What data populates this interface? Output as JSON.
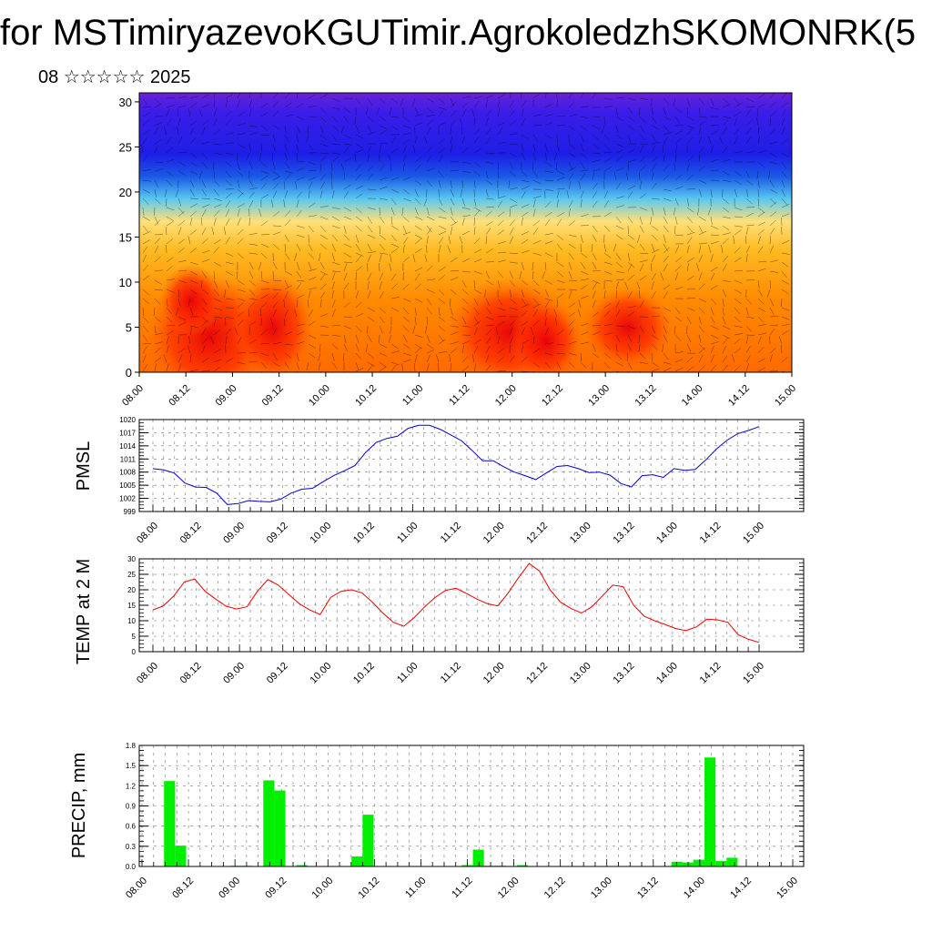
{
  "header": {
    "title": "for MSTimiryazevoKGUTimir.AgrokoledzhSKOMONRK(5",
    "date": "08 ☆☆☆☆☆ 2025"
  },
  "chart_data": [
    {
      "type": "heatmap",
      "title": "",
      "xlabel": "",
      "ylabel": "",
      "xticks": [
        "08.00",
        "08.12",
        "09.00",
        "09.12",
        "10.00",
        "10.12",
        "11.00",
        "11.12",
        "12.00",
        "12.12",
        "13.00",
        "13.12",
        "14.00",
        "14.12",
        "15.00"
      ],
      "yticks": [
        0,
        5,
        10,
        15,
        20,
        25,
        30
      ],
      "ylim": [
        0,
        31
      ],
      "colors": [
        "#e8000b",
        "#ff8a00",
        "#ffd84a",
        "#5ac8f0",
        "#1e1ee6",
        "#6a20d8"
      ]
    },
    {
      "type": "line",
      "ylabel": "PMSL",
      "ylim": [
        999,
        1020
      ],
      "yticks": [
        999,
        1002,
        1005,
        1008,
        1011,
        1014,
        1017,
        1020
      ],
      "xticks": [
        "08.00",
        "08.12",
        "09.00",
        "09.12",
        "10.00",
        "10.12",
        "11.00",
        "11.12",
        "12.00",
        "12.12",
        "13.00",
        "13.12",
        "14.00",
        "14.12",
        "15.00"
      ],
      "grid": true,
      "color": "#0000cc",
      "values": [
        1008.8,
        1008.5,
        1007.8,
        1005.5,
        1004.6,
        1004.5,
        1003.2,
        1000.6,
        1000.8,
        1001.5,
        1001.3,
        1001.2,
        1001.8,
        1003.2,
        1004.1,
        1004.3,
        1005.8,
        1007.2,
        1008.3,
        1009.5,
        1012.5,
        1014.8,
        1015.7,
        1016.2,
        1018.0,
        1018.7,
        1018.7,
        1017.8,
        1016.5,
        1015.2,
        1013.0,
        1010.6,
        1010.6,
        1009.2,
        1008.0,
        1007.2,
        1006.3,
        1007.8,
        1009.3,
        1009.5,
        1008.8,
        1007.9,
        1008.0,
        1007.3,
        1005.4,
        1004.6,
        1007.2,
        1007.4,
        1006.8,
        1008.8,
        1008.4,
        1008.6,
        1010.8,
        1013.3,
        1015.3,
        1016.8,
        1017.5,
        1018.4
      ]
    },
    {
      "type": "line",
      "ylabel": "TEMP at 2 M",
      "ylim": [
        0,
        30
      ],
      "yticks": [
        0,
        5,
        10,
        15,
        20,
        25,
        30
      ],
      "xticks": [
        "08.00",
        "08.12",
        "09.00",
        "09.12",
        "10.00",
        "10.12",
        "11.00",
        "11.12",
        "12.00",
        "12.12",
        "13.00",
        "13.12",
        "14.00",
        "14.12",
        "15.00"
      ],
      "grid": true,
      "color": "#ee0000",
      "values": [
        13.5,
        14.8,
        18.0,
        22.5,
        23.5,
        19.5,
        17.0,
        14.7,
        13.8,
        14.5,
        19.5,
        23.3,
        21.5,
        18.5,
        15.5,
        13.5,
        12.0,
        17.5,
        19.5,
        20.0,
        19.0,
        16.0,
        12.5,
        9.5,
        8.2,
        11.0,
        14.5,
        17.5,
        19.8,
        20.5,
        18.8,
        17.0,
        15.5,
        14.8,
        19.0,
        24.0,
        28.5,
        26.0,
        20.0,
        16.0,
        14.0,
        12.5,
        14.5,
        18.0,
        21.5,
        21.0,
        15.0,
        11.5,
        10.0,
        8.8,
        7.5,
        6.8,
        8.0,
        10.5,
        10.3,
        9.5,
        5.5,
        4.0,
        3.0
      ]
    },
    {
      "type": "bar",
      "ylabel": "PRECIP, mm",
      "ylim": [
        0,
        1.8
      ],
      "yticks": [
        "0.0",
        "0.3",
        "0.6",
        "0.9",
        "1.2",
        "1.5",
        "1.8"
      ],
      "xticks": [
        "08.00",
        "08.12",
        "09.00",
        "09.12",
        "10.00",
        "10.12",
        "11.00",
        "11.12",
        "12.00",
        "12.12",
        "13.00",
        "13.12",
        "14.00",
        "14.12",
        "15.00"
      ],
      "grid": true,
      "color": "#00ee00",
      "values": [
        0,
        0,
        1.27,
        0.31,
        0,
        0,
        0,
        0,
        0.01,
        0.01,
        0,
        1.28,
        1.13,
        0,
        0.02,
        0,
        0,
        0,
        0,
        0.15,
        0.77,
        0,
        0,
        0,
        0,
        0,
        0,
        0,
        0,
        0.02,
        0.25,
        0.01,
        0.01,
        0,
        0.02,
        0,
        0,
        0,
        0,
        0,
        0,
        0,
        0,
        0,
        0,
        0,
        0,
        0,
        0.07,
        0.06,
        0.1,
        1.62,
        0.08,
        0.13,
        0,
        0,
        0,
        0,
        0
      ]
    }
  ]
}
